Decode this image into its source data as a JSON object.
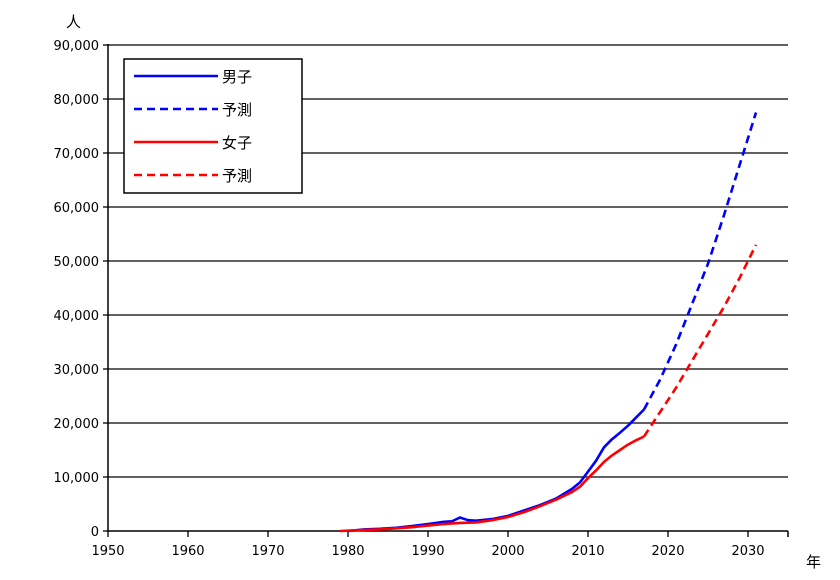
{
  "chart_data": {
    "type": "line",
    "title": "",
    "xlabel": "年",
    "ylabel": "人",
    "xlim": [
      1950,
      2035
    ],
    "ylim": [
      0,
      90000
    ],
    "x_ticks": [
      "1950",
      "1960",
      "1970",
      "1980",
      "1990",
      "2000",
      "2010",
      "2020",
      "2030"
    ],
    "y_ticks": [
      "0",
      "10,000",
      "20,000",
      "30,000",
      "40,000",
      "50,000",
      "60,000",
      "70,000",
      "80,000",
      "90,000"
    ],
    "grid": "horizontal",
    "legend_position": "top-left",
    "series": [
      {
        "name": "男子",
        "style": "solid",
        "color": "#0000ff",
        "x": [
          1980,
          1982,
          1984,
          1986,
          1988,
          1990,
          1992,
          1993,
          1994,
          1995,
          1996,
          1998,
          2000,
          2002,
          2004,
          2006,
          2008,
          2009,
          2010,
          2011,
          2012,
          2013,
          2014,
          2015,
          2016,
          2017
        ],
        "y": [
          0,
          300,
          400,
          600,
          900,
          1300,
          1700,
          1800,
          2500,
          2000,
          1900,
          2200,
          2800,
          3800,
          4800,
          6000,
          7800,
          9000,
          11000,
          13000,
          15500,
          17000,
          18200,
          19500,
          21000,
          22500
        ]
      },
      {
        "name": "予測",
        "style": "dashed",
        "color": "#0000ff",
        "x": [
          2017,
          2019,
          2021,
          2023,
          2025,
          2027,
          2029,
          2031
        ],
        "y": [
          22500,
          28000,
          34500,
          42000,
          49500,
          58500,
          68000,
          77500
        ]
      },
      {
        "name": "女子",
        "style": "solid",
        "color": "#ff0000",
        "x": [
          1979,
          1982,
          1984,
          1986,
          1988,
          1990,
          1992,
          1994,
          1996,
          1998,
          2000,
          2002,
          2004,
          2006,
          2008,
          2009,
          2010,
          2011,
          2012,
          2013,
          2014,
          2015,
          2016,
          2017
        ],
        "y": [
          0,
          200,
          300,
          500,
          700,
          1000,
          1300,
          1500,
          1600,
          2000,
          2600,
          3500,
          4600,
          5800,
          7200,
          8200,
          9800,
          11200,
          12800,
          14000,
          15000,
          16000,
          16800,
          17500
        ]
      },
      {
        "name": "予測",
        "style": "dashed",
        "color": "#ff0000",
        "x": [
          2017,
          2019,
          2021,
          2023,
          2025,
          2027,
          2029,
          2031
        ],
        "y": [
          17500,
          22000,
          26500,
          31500,
          36500,
          41500,
          47000,
          53000
        ]
      }
    ]
  }
}
